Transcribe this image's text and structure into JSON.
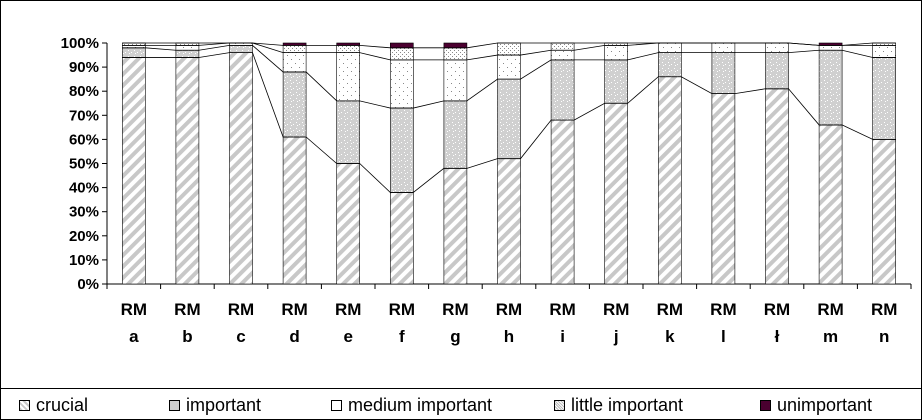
{
  "chart_data": {
    "type": "bar",
    "stacked": true,
    "percent": true,
    "title": "",
    "xlabel": "",
    "ylabel": "",
    "ylim": [
      0,
      100
    ],
    "yticks": [
      "0%",
      "10%",
      "20%",
      "30%",
      "40%",
      "50%",
      "60%",
      "70%",
      "80%",
      "90%",
      "100%"
    ],
    "categories": [
      [
        "RM",
        "a"
      ],
      [
        "RM",
        "b"
      ],
      [
        "RM",
        "c"
      ],
      [
        "RM",
        "d"
      ],
      [
        "RM",
        "e"
      ],
      [
        "RM",
        "f"
      ],
      [
        "RM",
        "g"
      ],
      [
        "RM",
        "h"
      ],
      [
        "RM",
        "i"
      ],
      [
        "RM",
        "j"
      ],
      [
        "RM",
        "k"
      ],
      [
        "RM",
        "l"
      ],
      [
        "RM",
        "ł"
      ],
      [
        "RM",
        "m"
      ],
      [
        "RM",
        "n"
      ]
    ],
    "series": [
      {
        "name": "crucial",
        "color": "#ffffff",
        "pattern": "diagonal",
        "values": [
          94,
          94,
          96,
          61,
          50,
          38,
          48,
          52,
          68,
          75,
          86,
          79,
          81,
          66,
          60
        ]
      },
      {
        "name": "important",
        "color": "#d9d9d9",
        "pattern": "speckle",
        "values": [
          4,
          3,
          3,
          27,
          26,
          35,
          28,
          33,
          25,
          18,
          10,
          17,
          15,
          31,
          34
        ]
      },
      {
        "name": "medium important",
        "color": "#ffffff",
        "pattern": "sparse-dots",
        "values": [
          1,
          2,
          1,
          8,
          20,
          20,
          17,
          10,
          4,
          6,
          4,
          4,
          4,
          2,
          5
        ]
      },
      {
        "name": "little important",
        "color": "#e6e6e6",
        "pattern": "fine-dots",
        "values": [
          1,
          1,
          0,
          3,
          3,
          5,
          5,
          5,
          3,
          1,
          0,
          0,
          0,
          0,
          1
        ]
      },
      {
        "name": "unimportant",
        "color": "#4b0030",
        "pattern": "solid",
        "values": [
          0,
          0,
          0,
          1,
          1,
          2,
          2,
          0,
          0,
          0,
          0,
          0,
          0,
          1,
          0
        ]
      }
    ],
    "series_lines": true,
    "grid": false,
    "legend_position": "bottom"
  }
}
